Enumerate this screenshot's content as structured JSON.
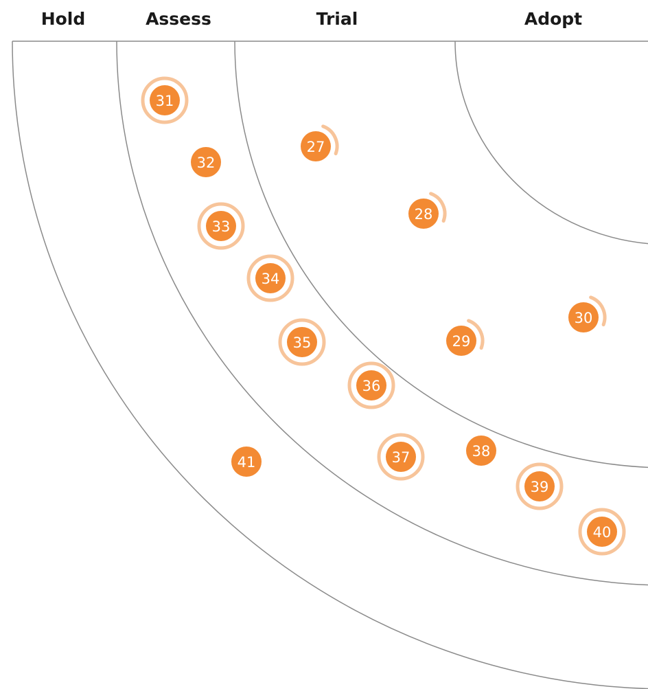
{
  "rings": [
    {
      "key": "hold",
      "label": "Hold"
    },
    {
      "key": "assess",
      "label": "Assess"
    },
    {
      "key": "trial",
      "label": "Trial"
    },
    {
      "key": "adopt",
      "label": "Adopt"
    }
  ],
  "colors": {
    "blip": "#f38a33",
    "blip_halo": "#f7c49a",
    "ring_line": "#8a8a8a",
    "label": "#1a1a1a"
  },
  "blips": [
    {
      "id": "27",
      "ring": "trial",
      "indicator": "arc"
    },
    {
      "id": "28",
      "ring": "trial",
      "indicator": "arc"
    },
    {
      "id": "29",
      "ring": "trial",
      "indicator": "arc"
    },
    {
      "id": "30",
      "ring": "trial",
      "indicator": "arc"
    },
    {
      "id": "31",
      "ring": "assess",
      "indicator": "ring"
    },
    {
      "id": "32",
      "ring": "assess",
      "indicator": "none"
    },
    {
      "id": "33",
      "ring": "assess",
      "indicator": "ring"
    },
    {
      "id": "34",
      "ring": "assess",
      "indicator": "ring"
    },
    {
      "id": "35",
      "ring": "assess",
      "indicator": "ring"
    },
    {
      "id": "36",
      "ring": "assess",
      "indicator": "ring"
    },
    {
      "id": "37",
      "ring": "assess",
      "indicator": "ring"
    },
    {
      "id": "38",
      "ring": "assess",
      "indicator": "none"
    },
    {
      "id": "39",
      "ring": "assess",
      "indicator": "ring"
    },
    {
      "id": "40",
      "ring": "assess",
      "indicator": "ring"
    },
    {
      "id": "41",
      "ring": "hold",
      "indicator": "none"
    }
  ]
}
